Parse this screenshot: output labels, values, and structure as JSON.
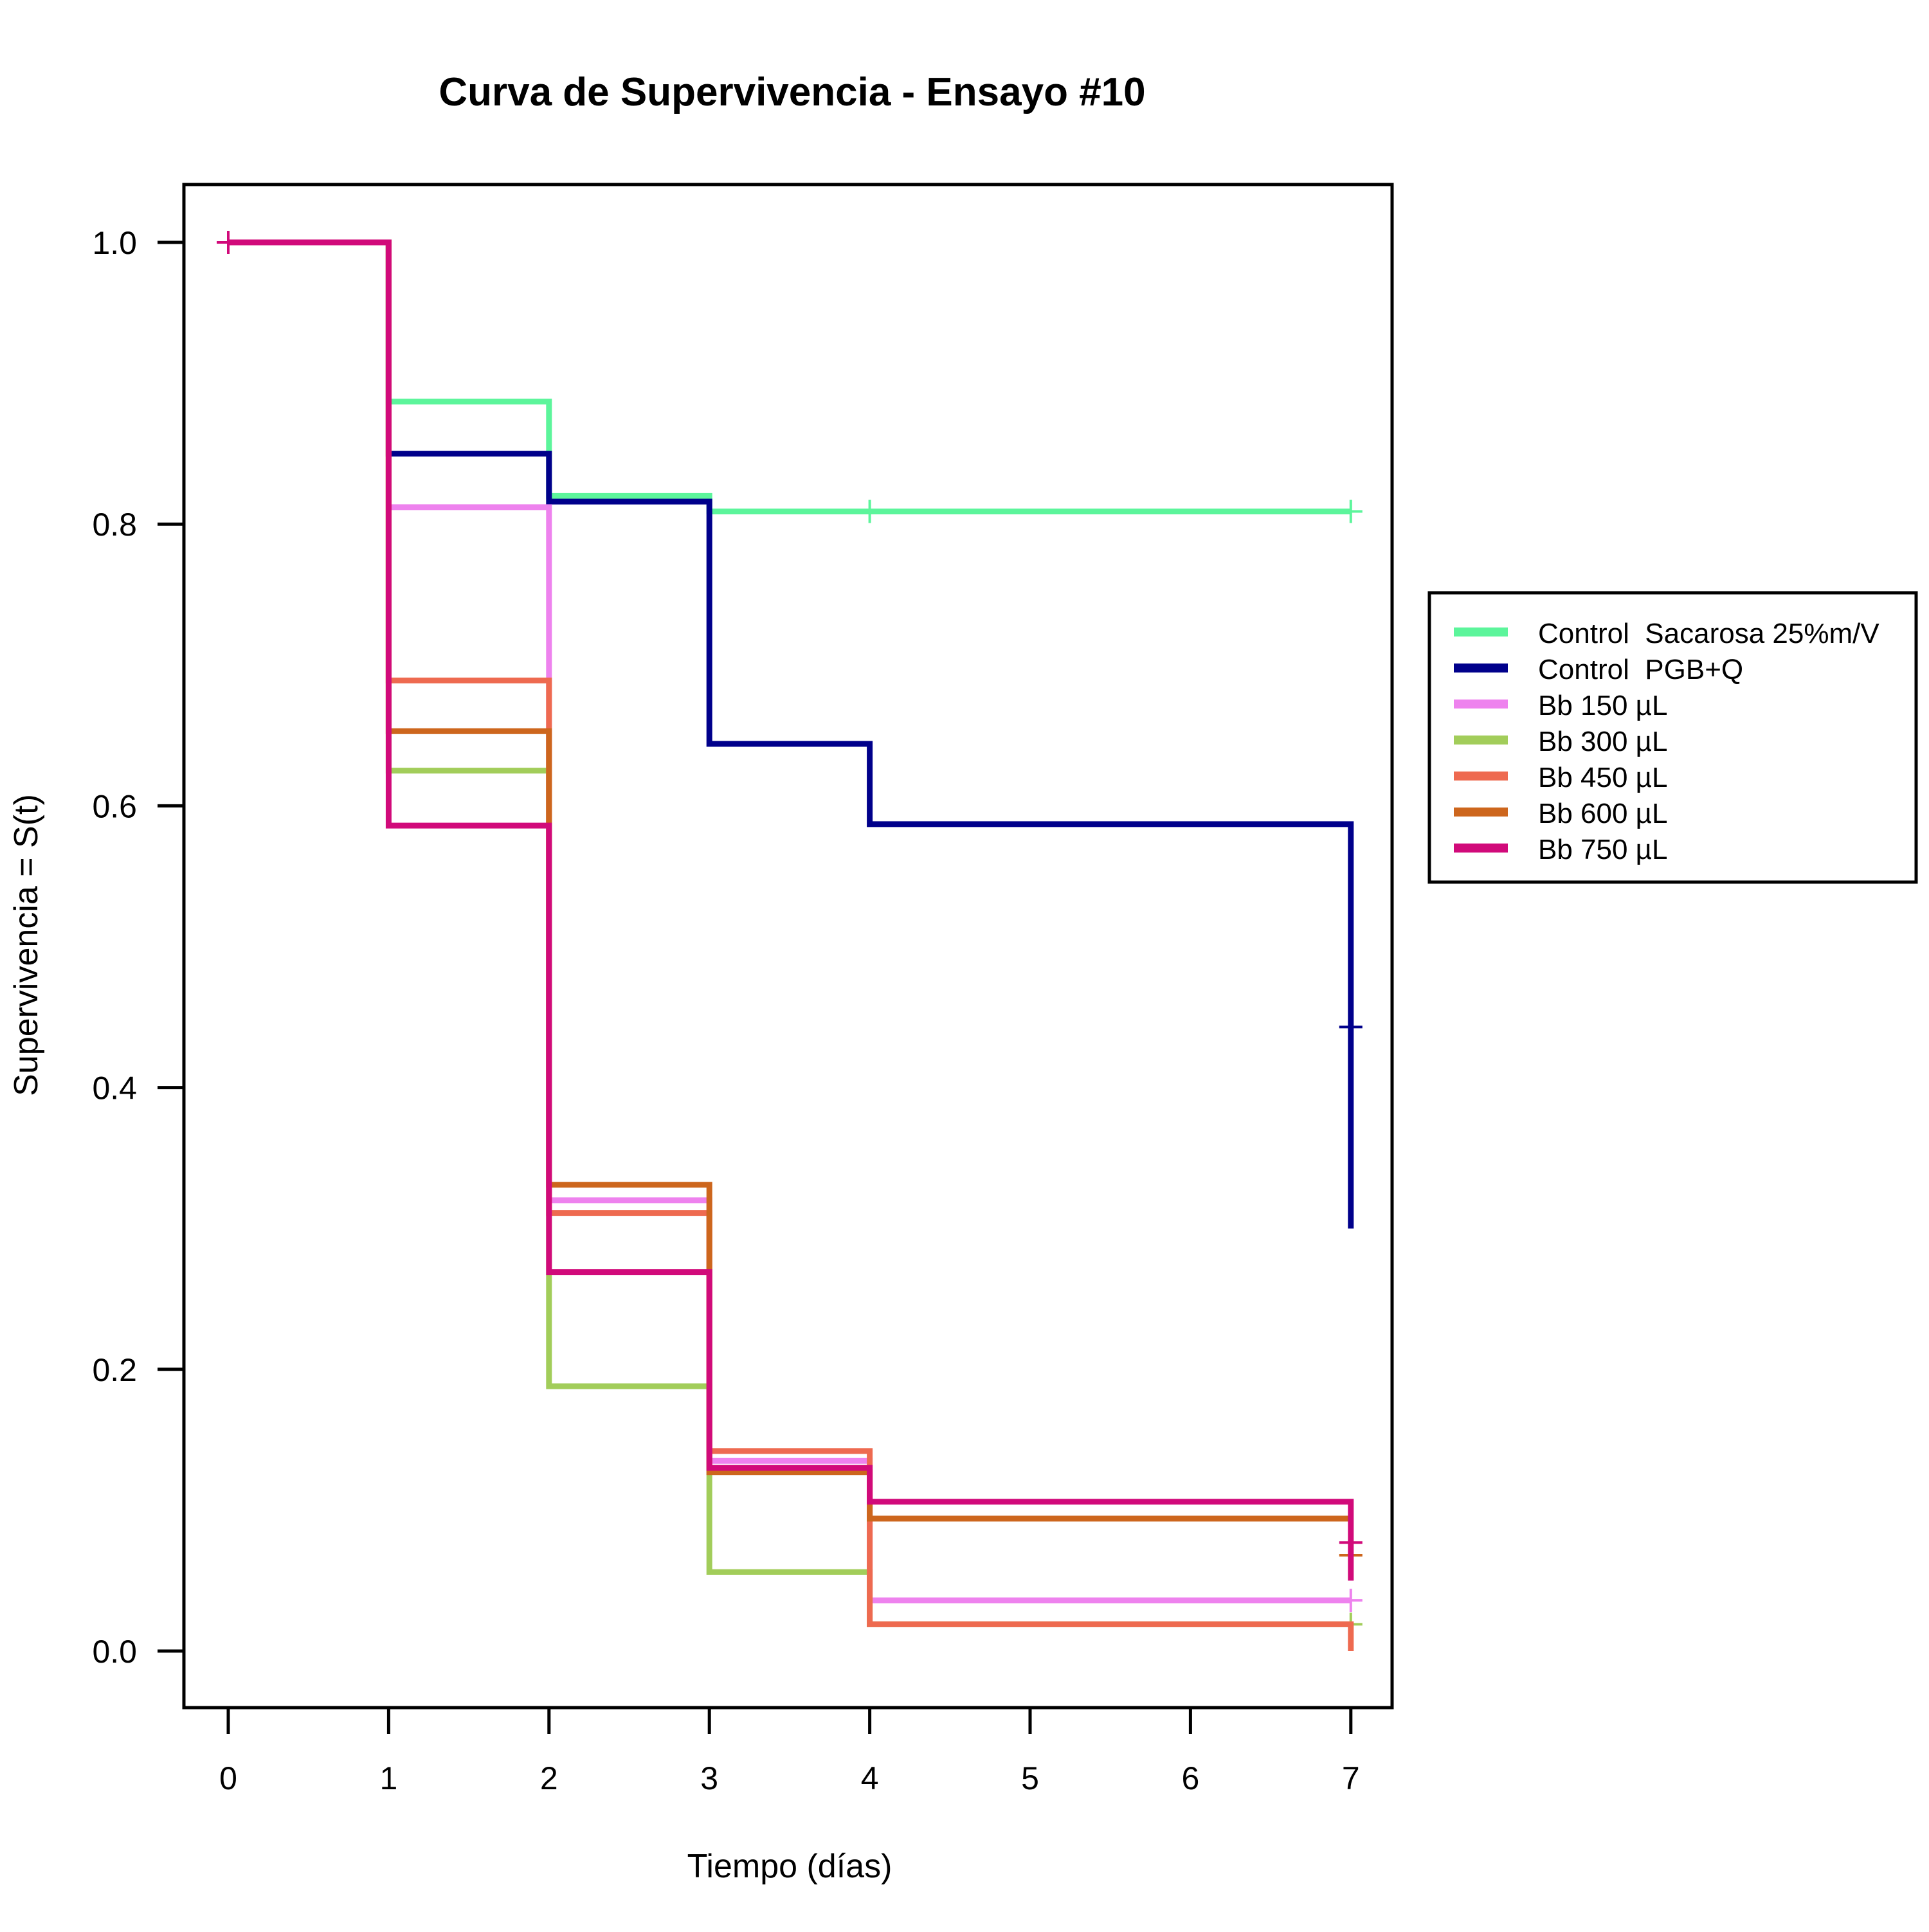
{
  "chart_data": {
    "type": "line",
    "step": true,
    "title": "Curva de Supervivencia - Ensayo #10",
    "xlabel": "Tiempo (días)",
    "ylabel": "Supervivencia = S(t)",
    "xlim": [
      0,
      7
    ],
    "ylim": [
      0,
      1
    ],
    "x_ticks": [
      "0",
      "1",
      "2",
      "3",
      "4",
      "5",
      "6",
      "7"
    ],
    "y_ticks": [
      "0.0",
      "0.2",
      "0.4",
      "0.6",
      "0.8",
      "1.0"
    ],
    "grid": false,
    "legend_position": "right",
    "series": [
      {
        "name": "Control  Sacarosa 25%m/V",
        "color": "#5CF59B",
        "x": [
          0,
          1,
          2,
          3,
          7
        ],
        "y": [
          1.0,
          0.887,
          0.82,
          0.809,
          0.809
        ],
        "censor_x": [
          4,
          7
        ],
        "censor_y": [
          0.809,
          0.809
        ]
      },
      {
        "name": "Control  PGB+Q",
        "color": "#00008B",
        "x": [
          0,
          1,
          2,
          3,
          4,
          7,
          7
        ],
        "y": [
          1.0,
          0.85,
          0.816,
          0.644,
          0.587,
          0.587,
          0.3
        ],
        "censor_x": [
          7
        ],
        "censor_y": [
          0.443
        ]
      },
      {
        "name": "Bb 150 µL",
        "color": "#EE82EE",
        "x": [
          0,
          1,
          2,
          3,
          4,
          7
        ],
        "y": [
          1.0,
          0.812,
          0.32,
          0.135,
          0.036,
          0.036
        ],
        "censor_x": [
          7
        ],
        "censor_y": [
          0.036
        ]
      },
      {
        "name": "Bb 300 µL",
        "color": "#A2CD5A",
        "x": [
          0,
          1,
          2,
          3,
          4,
          7
        ],
        "y": [
          1.0,
          0.625,
          0.188,
          0.056,
          0.019,
          0.019
        ],
        "censor_x": [
          7
        ],
        "censor_y": [
          0.019
        ]
      },
      {
        "name": "Bb 450 µL",
        "color": "#EE6A50",
        "x": [
          0,
          1,
          2,
          3,
          4,
          7,
          7
        ],
        "y": [
          1.0,
          0.689,
          0.311,
          0.142,
          0.019,
          0.019,
          0.0
        ],
        "censor_x": [],
        "censor_y": []
      },
      {
        "name": "Bb 600 µL",
        "color": "#CD661D",
        "x": [
          0,
          1,
          2,
          3,
          4,
          7
        ],
        "y": [
          1.0,
          0.653,
          0.331,
          0.127,
          0.094,
          0.094
        ],
        "censor_x": [
          7
        ],
        "censor_y": [
          0.068
        ]
      },
      {
        "name": "Bb 750 µL",
        "color": "#D10A7A",
        "x": [
          0,
          1,
          2,
          3,
          4,
          7,
          7
        ],
        "y": [
          1.0,
          0.586,
          0.269,
          0.13,
          0.106,
          0.106,
          0.05
        ],
        "censor_x": [
          0,
          7
        ],
        "censor_y": [
          1.0,
          0.077
        ]
      }
    ]
  }
}
